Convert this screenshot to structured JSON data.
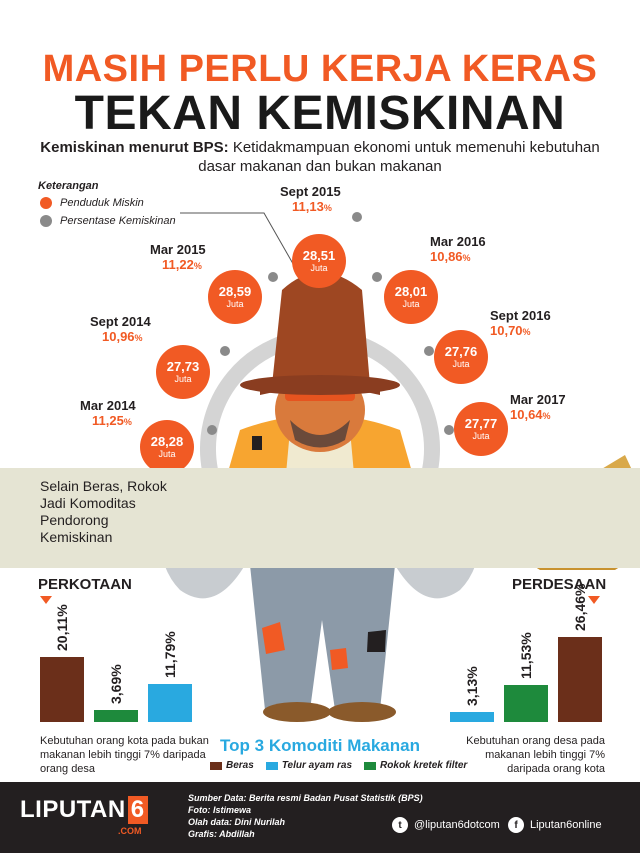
{
  "header": {
    "title_line1": "MASIH PERLU KERJA KERAS",
    "title_line2": "TEKAN KEMISKINAN",
    "subtitle_bold": "Kemiskinan menurut BPS:",
    "subtitle_rest": " Ketidakmampuan ekonomi untuk memenuhi kebutuhan dasar makanan dan bukan makanan"
  },
  "legend": {
    "title": "Keterangan",
    "items": [
      {
        "label": "Penduduk Miskin",
        "color": "#f15a24"
      },
      {
        "label": "Persentase Kemiskinan",
        "color": "#8a8a8a"
      }
    ]
  },
  "colors": {
    "accent": "#f15a24",
    "grey": "#8a8a8a",
    "beras": "#6b2f1a",
    "telur": "#29a9e0",
    "rokok": "#1e8a3c",
    "band": "#e5e4d3"
  },
  "chart_data": [
    {
      "type": "scatter",
      "title": "",
      "categories": [
        "Mar 2014",
        "Sept 2014",
        "Mar 2015",
        "Sept 2015",
        "Mar 2016",
        "Sept 2016",
        "Mar 2017"
      ],
      "series": [
        {
          "name": "Penduduk Miskin",
          "unit": "Juta",
          "values": [
            "28,28",
            "27,73",
            "28,59",
            "28,51",
            "28,01",
            "27,76",
            "27,77"
          ]
        },
        {
          "name": "Persentase Kemiskinan",
          "unit": "%",
          "values": [
            "11,25",
            "10,96",
            "11,22",
            "11,13",
            "10,86",
            "10,70",
            "10,64"
          ]
        }
      ]
    },
    {
      "type": "bar",
      "title": "PERKOTAAN",
      "categories": [
        "Beras",
        "Telur ayam ras",
        "Rokok kretek filter"
      ],
      "values": [
        20.11,
        11.79,
        3.69
      ],
      "labels": [
        "20,11%",
        "11,79%",
        "3,69%"
      ],
      "order": [
        "Beras",
        "Rokok kretek filter",
        "Telur ayam ras"
      ],
      "note": "Kebutuhan orang kota pada bukan makanan lebih tinggi 7% daripada orang desa",
      "ylim": [
        0,
        30
      ]
    },
    {
      "type": "bar",
      "title": "PERDESAAN",
      "categories": [
        "Beras",
        "Telur ayam ras",
        "Rokok kretek filter"
      ],
      "values": [
        26.46,
        3.13,
        11.53
      ],
      "labels": [
        "26,46%",
        "3,13%",
        "11,53%"
      ],
      "order": [
        "Telur ayam ras",
        "Rokok kretek filter",
        "Beras"
      ],
      "note": "Kebutuhan orang desa pada makanan lebih tinggi 7% daripada orang kota",
      "ylim": [
        0,
        30
      ]
    }
  ],
  "band": {
    "text": "Selain Beras, Rokok Jadi Komoditas Pendorong Kemiskinan"
  },
  "top3": {
    "title": "Top 3 Komoditi Makanan",
    "items": [
      "Beras",
      "Telur ayam ras",
      "Rokok kretek filter"
    ]
  },
  "footer": {
    "brand": "LIPUTAN",
    "brand_six": "6",
    "brand_com": ".COM",
    "credit_1": "Sumber Data: Berita resmi Badan Pusat Statistik (BPS)",
    "credit_2": "Foto: Istimewa",
    "credit_3": "Olah data: Dini Nurilah",
    "credit_4": "Grafis: Abdillah",
    "twitter": "@liputan6dotcom",
    "facebook": "Liputan6online"
  },
  "icons": {
    "twitter": "twitter-icon",
    "facebook": "facebook-icon"
  }
}
